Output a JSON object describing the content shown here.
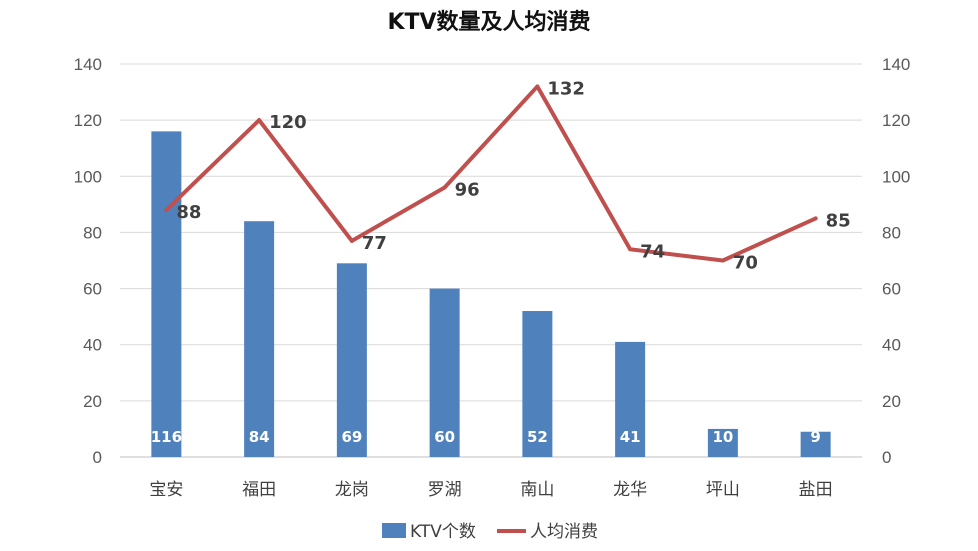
{
  "chart_data": {
    "type": "bar",
    "title": "KTV数量及人均消费",
    "categories": [
      "宝安",
      "福田",
      "龙岗",
      "罗湖",
      "南山",
      "龙华",
      "坪山",
      "盐田"
    ],
    "series": [
      {
        "name": "KTV个数",
        "type": "bar",
        "axis": "left",
        "color": "#4f81bd",
        "values": [
          116,
          84,
          69,
          60,
          52,
          41,
          10,
          9
        ]
      },
      {
        "name": "人均消费",
        "type": "line",
        "axis": "right",
        "color": "#c0504d",
        "values": [
          88,
          120,
          77,
          96,
          132,
          74,
          70,
          85
        ]
      }
    ],
    "ylim": [
      0,
      140
    ],
    "y2lim": [
      0,
      140
    ],
    "yticks": [
      "0",
      "20",
      "40",
      "60",
      "80",
      "100",
      "120",
      "140"
    ],
    "grid": true,
    "legend_position": "bottom"
  }
}
